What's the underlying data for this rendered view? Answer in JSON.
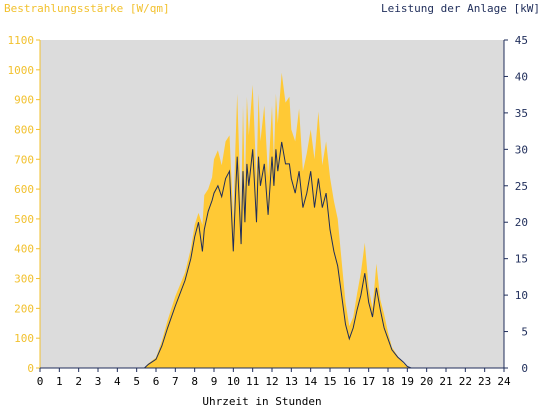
{
  "chart_data": {
    "type": "area",
    "title_left": "Bestrahlungsstärke [W/qm]",
    "title_right": "Leistung der Anlage [kW]",
    "xlabel": "Uhrzeit in Stunden",
    "xlim": [
      0,
      24
    ],
    "ylim_left": [
      0,
      1100
    ],
    "ylim_right": [
      0,
      45
    ],
    "x_ticks": [
      "0",
      "1",
      "2",
      "3",
      "4",
      "5",
      "6",
      "7",
      "8",
      "9",
      "10",
      "11",
      "12",
      "13",
      "14",
      "15",
      "16",
      "17",
      "18",
      "19",
      "20",
      "21",
      "22",
      "23",
      "24"
    ],
    "y_left_ticks": [
      "0",
      "100",
      "200",
      "300",
      "400",
      "500",
      "600",
      "700",
      "800",
      "900",
      "1000",
      "1100"
    ],
    "y_right_ticks": [
      "0",
      "5",
      "10",
      "15",
      "20",
      "25",
      "30",
      "35",
      "40",
      "45"
    ],
    "grid": false,
    "colors": {
      "irradiance": "#ffc935",
      "power": "#1f2d5a",
      "plot_bg": "#dcdcdc",
      "left_axis": "#f2c12e"
    },
    "series": [
      {
        "name": "Bestrahlungsstärke [W/qm]",
        "axis": "left",
        "x": [
          0,
          5.4,
          5.6,
          6.0,
          6.3,
          6.6,
          7.0,
          7.5,
          7.8,
          8.0,
          8.2,
          8.4,
          8.5,
          8.7,
          8.9,
          9.0,
          9.2,
          9.4,
          9.6,
          9.8,
          10.0,
          10.1,
          10.2,
          10.4,
          10.5,
          10.6,
          10.7,
          10.8,
          11.0,
          11.2,
          11.3,
          11.4,
          11.6,
          11.8,
          12.0,
          12.1,
          12.2,
          12.3,
          12.5,
          12.7,
          12.9,
          13.0,
          13.2,
          13.4,
          13.6,
          13.8,
          14.0,
          14.2,
          14.4,
          14.6,
          14.8,
          15.0,
          15.2,
          15.4,
          15.6,
          15.8,
          16.0,
          16.2,
          16.4,
          16.6,
          16.8,
          17.0,
          17.2,
          17.4,
          17.6,
          17.8,
          18.0,
          18.2,
          18.5,
          18.8,
          19.0,
          19.2,
          24
        ],
        "y": [
          0,
          0,
          15,
          35,
          90,
          160,
          240,
          320,
          400,
          480,
          520,
          480,
          580,
          600,
          640,
          700,
          730,
          680,
          760,
          780,
          500,
          730,
          920,
          520,
          880,
          600,
          910,
          780,
          950,
          620,
          920,
          760,
          880,
          640,
          880,
          700,
          920,
          820,
          990,
          890,
          910,
          800,
          760,
          870,
          660,
          720,
          800,
          700,
          860,
          680,
          760,
          640,
          560,
          500,
          360,
          220,
          140,
          170,
          250,
          320,
          420,
          270,
          200,
          350,
          230,
          180,
          120,
          70,
          40,
          15,
          5,
          0,
          0
        ]
      },
      {
        "name": "Leistung der Anlage [kW]",
        "axis": "right",
        "x": [
          0,
          5.4,
          5.6,
          6.0,
          6.3,
          6.6,
          7.0,
          7.5,
          7.8,
          8.0,
          8.2,
          8.4,
          8.5,
          8.7,
          8.9,
          9.0,
          9.2,
          9.4,
          9.6,
          9.8,
          10.0,
          10.1,
          10.2,
          10.4,
          10.5,
          10.6,
          10.7,
          10.8,
          11.0,
          11.2,
          11.3,
          11.4,
          11.6,
          11.8,
          12.0,
          12.1,
          12.2,
          12.3,
          12.5,
          12.7,
          12.9,
          13.0,
          13.2,
          13.4,
          13.6,
          13.8,
          14.0,
          14.2,
          14.4,
          14.6,
          14.8,
          15.0,
          15.2,
          15.4,
          15.6,
          15.8,
          16.0,
          16.2,
          16.4,
          16.6,
          16.8,
          17.0,
          17.2,
          17.4,
          17.6,
          17.8,
          18.0,
          18.2,
          18.5,
          18.8,
          19.0,
          19.2,
          24
        ],
        "y": [
          0,
          0,
          0.5,
          1.2,
          3,
          5.5,
          8.5,
          12,
          15,
          18,
          20,
          16,
          19,
          21.5,
          23,
          24,
          25,
          23.5,
          26,
          27,
          16,
          23,
          29,
          17,
          27,
          20,
          28,
          25,
          30,
          20,
          29,
          25,
          28,
          21,
          29,
          25,
          30,
          27,
          31,
          28,
          28,
          26,
          24,
          27,
          22,
          24,
          27,
          22,
          26,
          22,
          24,
          19,
          16,
          14,
          10,
          6,
          4,
          5.5,
          8,
          10,
          13,
          9,
          7,
          11,
          8,
          5.5,
          4,
          2.5,
          1.5,
          0.8,
          0.2,
          0,
          0
        ]
      }
    ]
  }
}
